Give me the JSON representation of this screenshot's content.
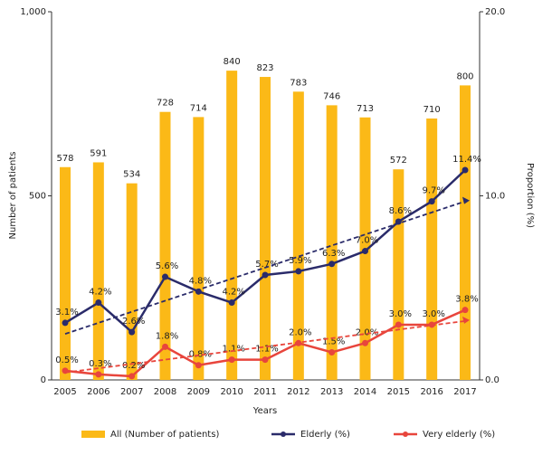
{
  "chart_data": {
    "type": "bar-line",
    "categories": [
      "2005",
      "2006",
      "2007",
      "2008",
      "2009",
      "2010",
      "2011",
      "2012",
      "2013",
      "2014",
      "2015",
      "2016",
      "2017"
    ],
    "series": [
      {
        "name": "All (Number of patients)",
        "type": "bar",
        "axis": "y",
        "color": "#fbb917",
        "values": [
          578,
          591,
          534,
          728,
          714,
          840,
          823,
          783,
          746,
          713,
          572,
          710,
          800
        ]
      },
      {
        "name": "Elderly (%)",
        "type": "line",
        "axis": "y2",
        "color": "#2a2b6a",
        "values": [
          3.1,
          4.2,
          2.6,
          5.6,
          4.8,
          4.2,
          5.7,
          5.9,
          6.3,
          7.0,
          8.6,
          9.7,
          11.4
        ],
        "value_labels": [
          "3.1%",
          "4.2%",
          "2.6%",
          "5.6%",
          "4.8%",
          "4.2%",
          "5.7%",
          "5.9%",
          "6.3%",
          "7.0%",
          "8.6%",
          "9.7%",
          "11.4%"
        ]
      },
      {
        "name": "Very elderly (%)",
        "type": "line",
        "axis": "y2",
        "color": "#e8453c",
        "values": [
          0.5,
          0.3,
          0.2,
          1.8,
          0.8,
          1.1,
          1.1,
          2.0,
          1.5,
          2.0,
          3.0,
          3.0,
          3.8
        ],
        "value_labels": [
          "0.5%",
          "0.3%",
          "0.2%",
          "1.8%",
          "0.8%",
          "1.1%",
          "1.1%",
          "2.0%",
          "1.5%",
          "2.0%",
          "3.0%",
          "3.0%",
          "3.8%"
        ]
      }
    ],
    "trendlines": [
      {
        "color": "#2a2b6a",
        "values": [
          2.5,
          9.7
        ]
      },
      {
        "color": "#e8453c",
        "values": [
          0.4,
          3.2
        ]
      }
    ],
    "xlabel": "Years",
    "ylabel": "Number of patients",
    "y2label": "Proportion (%)",
    "ylim": [
      0,
      1000
    ],
    "yticks": [
      0,
      500,
      {
        "value": 1000,
        "label": "1,000"
      }
    ],
    "y2lim": [
      0,
      20
    ],
    "y2ticks": [
      {
        "value": 0,
        "label": "0.0"
      },
      {
        "value": 10,
        "label": "10.0"
      },
      {
        "value": 20,
        "label": "20.0"
      }
    ],
    "grid": false,
    "legend": "bottom"
  }
}
